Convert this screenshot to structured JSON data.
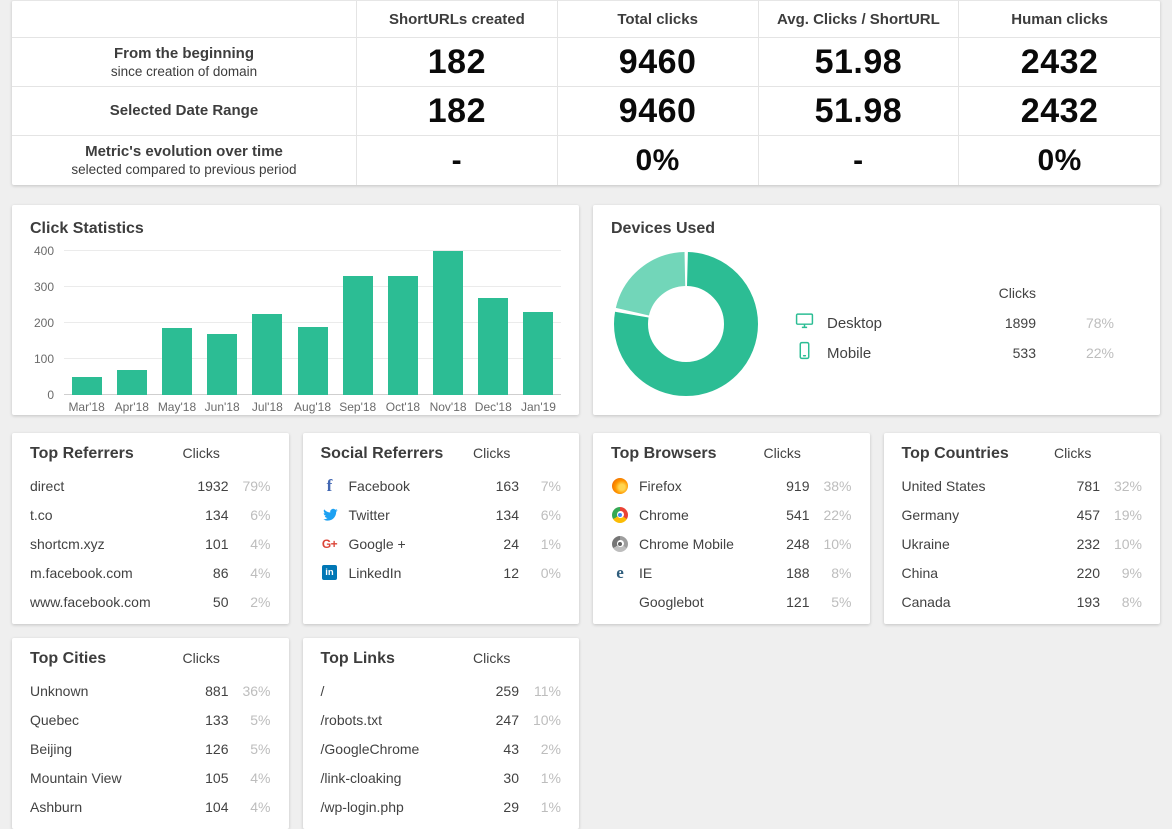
{
  "colors": {
    "accent_green": "#2cbd94",
    "donut_desktop": "#2cbd94",
    "donut_mobile": "#72d6b9",
    "percent_gray": "#bdbdbd",
    "page_background": "#efefef"
  },
  "summary": {
    "columns": [
      "ShortURLs created",
      "Total clicks",
      "Avg. Clicks / ShortURL",
      "Human clicks"
    ],
    "rows": [
      {
        "label": "From the beginning",
        "sublabel": "since creation of domain",
        "values": [
          "182",
          "9460",
          "51.98",
          "2432"
        ]
      },
      {
        "label": "Selected Date Range",
        "sublabel": "",
        "values": [
          "182",
          "9460",
          "51.98",
          "2432"
        ]
      },
      {
        "label": "Metric's evolution over time",
        "sublabel": "selected compared to previous period",
        "values": [
          "-",
          "0%",
          "-",
          "0%"
        ]
      }
    ]
  },
  "chart_data": [
    {
      "type": "bar",
      "title": "Click Statistics",
      "categories": [
        "Mar'18",
        "Apr'18",
        "May'18",
        "Jun'18",
        "Jul'18",
        "Aug'18",
        "Sep'18",
        "Oct'18",
        "Nov'18",
        "Dec'18",
        "Jan'19"
      ],
      "values": [
        50,
        70,
        185,
        170,
        225,
        190,
        330,
        330,
        400,
        270,
        230
      ],
      "xlabel": "",
      "ylabel": "",
      "ylim": [
        0,
        400
      ],
      "yticks": [
        0,
        100,
        200,
        300,
        400
      ],
      "grid": true,
      "legend_position": "none",
      "bar_color": "#2cbd94"
    },
    {
      "type": "pie",
      "title": "Devices Used",
      "donut": true,
      "legend_header": "Clicks",
      "slices": [
        {
          "label": "Desktop",
          "value": 1899,
          "percent": "78%",
          "color": "#2cbd94",
          "icon": "desktop-icon"
        },
        {
          "label": "Mobile",
          "value": 533,
          "percent": "22%",
          "color": "#72d6b9",
          "icon": "mobile-icon"
        }
      ]
    }
  ],
  "lists": [
    {
      "title": "Top Referrers",
      "value_header": "Clicks",
      "has_icons": false,
      "rows": [
        {
          "name": "direct",
          "value": "1932",
          "percent": "79%"
        },
        {
          "name": "t.co",
          "value": "134",
          "percent": "6%"
        },
        {
          "name": "shortcm.xyz",
          "value": "101",
          "percent": "4%"
        },
        {
          "name": "m.facebook.com",
          "value": "86",
          "percent": "4%"
        },
        {
          "name": "www.facebook.com",
          "value": "50",
          "percent": "2%"
        }
      ]
    },
    {
      "title": "Social Referrers",
      "value_header": "Clicks",
      "has_icons": true,
      "rows": [
        {
          "name": "Facebook",
          "icon": "facebook-icon",
          "value": "163",
          "percent": "7%"
        },
        {
          "name": "Twitter",
          "icon": "twitter-icon",
          "value": "134",
          "percent": "6%"
        },
        {
          "name": "Google +",
          "icon": "googleplus-icon",
          "value": "24",
          "percent": "1%"
        },
        {
          "name": "LinkedIn",
          "icon": "linkedin-icon",
          "value": "12",
          "percent": "0%"
        }
      ]
    },
    {
      "title": "Top Browsers",
      "value_header": "Clicks",
      "has_icons": true,
      "rows": [
        {
          "name": "Firefox",
          "icon": "firefox-icon",
          "value": "919",
          "percent": "38%"
        },
        {
          "name": "Chrome",
          "icon": "chrome-icon",
          "value": "541",
          "percent": "22%"
        },
        {
          "name": "Chrome Mobile",
          "icon": "chrome-mobile-icon",
          "value": "248",
          "percent": "10%"
        },
        {
          "name": "IE",
          "icon": "ie-icon",
          "value": "188",
          "percent": "8%"
        },
        {
          "name": "Googlebot",
          "icon": "none",
          "value": "121",
          "percent": "5%"
        }
      ]
    },
    {
      "title": "Top Countries",
      "value_header": "Clicks",
      "has_icons": false,
      "rows": [
        {
          "name": "United States",
          "value": "781",
          "percent": "32%"
        },
        {
          "name": "Germany",
          "value": "457",
          "percent": "19%"
        },
        {
          "name": "Ukraine",
          "value": "232",
          "percent": "10%"
        },
        {
          "name": "China",
          "value": "220",
          "percent": "9%"
        },
        {
          "name": "Canada",
          "value": "193",
          "percent": "8%"
        }
      ]
    },
    {
      "title": "Top Cities",
      "value_header": "Clicks",
      "has_icons": false,
      "rows": [
        {
          "name": "Unknown",
          "value": "881",
          "percent": "36%"
        },
        {
          "name": "Quebec",
          "value": "133",
          "percent": "5%"
        },
        {
          "name": "Beijing",
          "value": "126",
          "percent": "5%"
        },
        {
          "name": "Mountain View",
          "value": "105",
          "percent": "4%"
        },
        {
          "name": "Ashburn",
          "value": "104",
          "percent": "4%"
        }
      ]
    },
    {
      "title": "Top Links",
      "value_header": "Clicks",
      "has_icons": false,
      "rows": [
        {
          "name": "/",
          "value": "259",
          "percent": "11%"
        },
        {
          "name": "/robots.txt",
          "value": "247",
          "percent": "10%"
        },
        {
          "name": "/GoogleChrome",
          "value": "43",
          "percent": "2%"
        },
        {
          "name": "/link-cloaking",
          "value": "30",
          "percent": "1%"
        },
        {
          "name": "/wp-login.php",
          "value": "29",
          "percent": "1%"
        }
      ]
    }
  ]
}
